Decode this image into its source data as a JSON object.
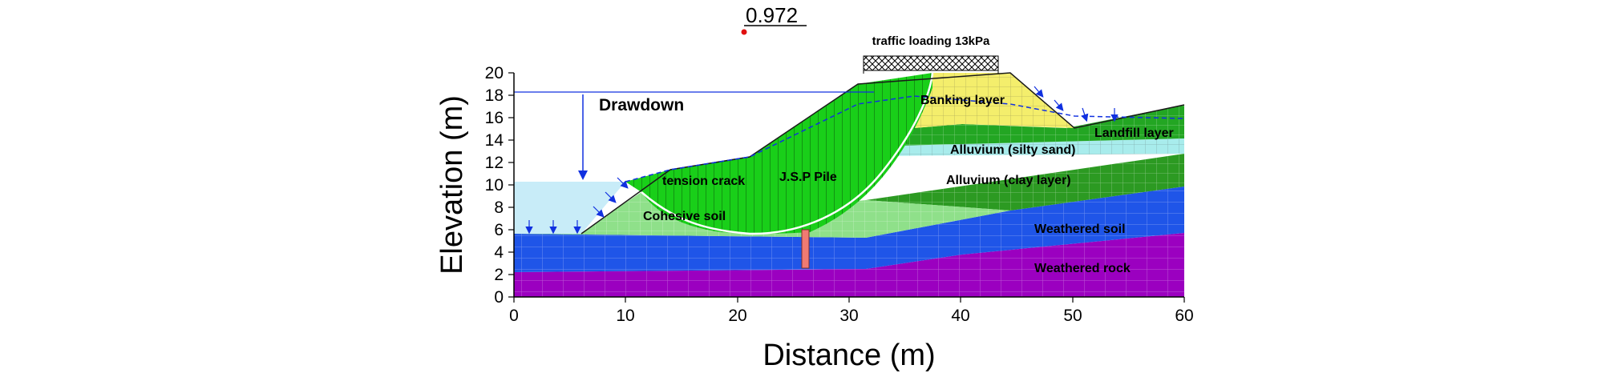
{
  "figure": {
    "factor_of_safety": "0.972",
    "traffic_loading": "traffic loading 13kPa",
    "drawdown": "Drawdown",
    "x_axis_title": "Distance (m)",
    "y_axis_title": "Elevation (m)"
  },
  "layers": {
    "banking": "Banking layer",
    "landfill": "Landfill layer",
    "alluvium_sand": "Alluvium (silty sand)",
    "alluvium_clay": "Alluvium (clay layer)",
    "weathered_soil": "Weathered soil",
    "weathered_rock": "Weathered rock",
    "cohesive": "Cohesive soil",
    "tension_crack": "tension crack",
    "jsp_pile": "J.S.P Pile"
  },
  "axes": {
    "x_ticks": [
      "0",
      "10",
      "20",
      "30",
      "40",
      "50",
      "60"
    ],
    "y_ticks": [
      "0",
      "2",
      "4",
      "6",
      "8",
      "10",
      "12",
      "14",
      "16",
      "18",
      "20"
    ],
    "x_range": [
      0,
      60
    ],
    "y_range": [
      0,
      20
    ]
  },
  "colors": {
    "weathered_rock": "#9b00c0",
    "weathered_soil": "#1f55e8",
    "alluvium_clay": "#2c9a22",
    "alluvium_sand": "#a8ecec",
    "landfill": "#23a623",
    "banking": "#f4ee6c",
    "cohesive": "#8fe08a",
    "slip_mass": "#19cf19",
    "water": "#c8ecf8",
    "pile": "#f07a72"
  }
}
